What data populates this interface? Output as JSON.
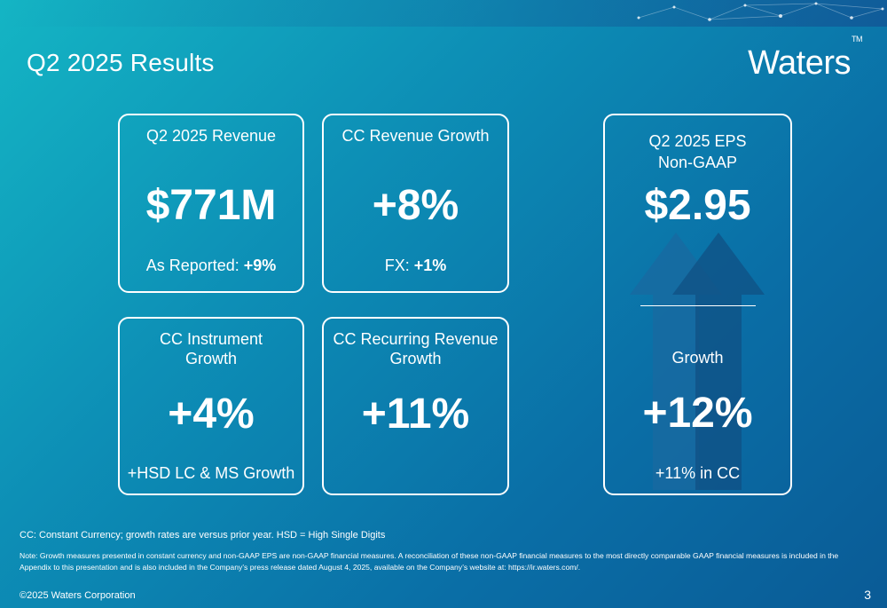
{
  "slide": {
    "title": "Q2 2025 Results",
    "logo_text": "Waters",
    "logo_tm": "TM",
    "page_number": "3"
  },
  "cards": {
    "revenue": {
      "heading": "Q2 2025 Revenue",
      "value": "$771M",
      "sub_label": "As Reported:",
      "sub_value": "+9%"
    },
    "cc_revenue_growth": {
      "heading": "CC Revenue Growth",
      "value": "+8%",
      "sub_label": "FX:",
      "sub_value": "+1%"
    },
    "cc_instrument_growth": {
      "heading_line1": "CC Instrument",
      "heading_line2": "Growth",
      "value": "+4%",
      "sub": "+HSD LC & MS Growth"
    },
    "cc_recurring_revenue_growth": {
      "heading_line1": "CC Recurring Revenue",
      "heading_line2": "Growth",
      "value": "+11%"
    },
    "eps": {
      "heading_line1": "Q2 2025 EPS",
      "heading_line2": "Non-GAAP",
      "value": "$2.95",
      "growth_label": "Growth",
      "growth_value": "+12%",
      "sub": "+11% in CC"
    }
  },
  "notes": {
    "definitions": "CC: Constant Currency; growth rates are versus prior year. HSD = High Single Digits",
    "disclaimer": "Note: Growth measures presented in constant currency and non-GAAP EPS are non-GAAP financial measures. A reconciliation of these non-GAAP financial measures to the most directly comparable GAAP financial measures is included in the Appendix to this presentation and is also included in the Company’s press release dated August 4, 2025, available on the Company’s website at: https://ir.waters.com/."
  },
  "footer": {
    "copyright": "©2025 Waters Corporation"
  },
  "colors": {
    "background_start": "#14b5c4",
    "background_end": "#0a5b96",
    "text": "#ffffff",
    "arrow_dark": "#0f4f82",
    "arrow_mid": "#1a6aa0"
  }
}
